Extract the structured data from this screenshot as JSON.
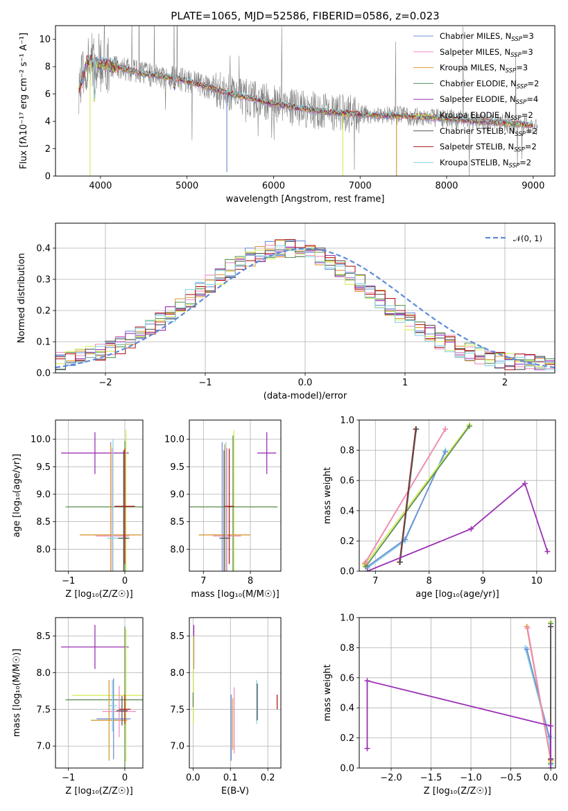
{
  "title": "PLATE=1065, MJD=52586, FIBERID=0586, z=0.023",
  "colors": {
    "Chabrier MILES": "#6f8fd6",
    "Salpeter MILES": "#f08cc0",
    "Kroupa MILES": "#d99a3a",
    "Chabrier ELODIE": "#5a8f5a",
    "Salpeter ELODIE": "#9b30b5",
    "Kroupa ELODIE": "#d6ec5a",
    "Chabrier STELIB": "#555555",
    "Salpeter STELIB": "#b01818",
    "Kroupa STELIB": "#88d4e0",
    "data": "#808080",
    "gauss": "#5b8bd9"
  },
  "chart_data": [
    {
      "id": "spectrum",
      "type": "line",
      "xlabel": "wavelength [Angstrom, rest frame]",
      "ylabel": "Flux [fλ10⁻¹⁷ erg cm⁻² s⁻¹ A⁻¹]",
      "xlim": [
        3480,
        9250
      ],
      "ylim": [
        0,
        11
      ],
      "xticks": [
        4000,
        5000,
        6000,
        7000,
        8000,
        9000
      ],
      "yticks": [
        0,
        2,
        4,
        6,
        8,
        10
      ],
      "legend_position": "top-right",
      "legend": [
        {
          "model": "Chabrier MILES",
          "label": "Chabrier MILES, N",
          "sub": "SSP",
          "tail": "=3"
        },
        {
          "model": "Salpeter MILES",
          "label": "Salpeter MILES, N",
          "sub": "SSP",
          "tail": "=3"
        },
        {
          "model": "Kroupa MILES",
          "label": "Kroupa MILES, N",
          "sub": "SSP",
          "tail": "=3"
        },
        {
          "model": "Chabrier ELODIE",
          "label": "Chabrier ELODIE, N",
          "sub": "SSP",
          "tail": "=2"
        },
        {
          "model": "Salpeter ELODIE",
          "label": "Salpeter ELODIE, N",
          "sub": "SSP",
          "tail": "=4"
        },
        {
          "model": "Kroupa ELODIE",
          "label": "Kroupa ELODIE, N",
          "sub": "SSP",
          "tail": "=2"
        },
        {
          "model": "Chabrier STELIB",
          "label": "Chabrier STELIB, N",
          "sub": "SSP",
          "tail": "=2"
        },
        {
          "model": "Salpeter STELIB",
          "label": "Salpeter STELIB, N",
          "sub": "SSP",
          "tail": "=2"
        },
        {
          "model": "Kroupa STELIB",
          "label": "Kroupa STELIB, N",
          "sub": "SSP",
          "tail": "=2"
        }
      ],
      "continuum": [
        [
          3750,
          6.3
        ],
        [
          3850,
          8.4
        ],
        [
          3950,
          8.3
        ],
        [
          4100,
          8.1
        ],
        [
          4300,
          7.8
        ],
        [
          4500,
          7.5
        ],
        [
          4700,
          7.3
        ],
        [
          4900,
          7.1
        ],
        [
          5200,
          6.6
        ],
        [
          5500,
          6.0
        ],
        [
          5800,
          5.6
        ],
        [
          6000,
          5.3
        ],
        [
          6300,
          4.95
        ],
        [
          6600,
          4.7
        ],
        [
          6900,
          4.55
        ],
        [
          7200,
          4.45
        ],
        [
          7500,
          4.4
        ],
        [
          7800,
          4.3
        ],
        [
          8100,
          4.15
        ],
        [
          8400,
          4.0
        ],
        [
          8700,
          3.85
        ],
        [
          9000,
          3.7
        ]
      ],
      "model_dips": [
        {
          "model": "Kroupa ELODIE",
          "x": 3880,
          "y": 0
        },
        {
          "model": "Chabrier MILES",
          "x": 5460,
          "y": 0.3
        },
        {
          "model": "Kroupa ELODIE",
          "x": 6800,
          "y": 0
        },
        {
          "model": "Kroupa MILES",
          "x": 7420,
          "y": 0
        }
      ]
    },
    {
      "id": "residuals",
      "type": "histogram",
      "xlabel": "(data-model)/error",
      "ylabel": "Normed distribution",
      "xlim": [
        -2.5,
        2.5
      ],
      "ylim": [
        0,
        0.48
      ],
      "xticks": [
        -2,
        -1,
        0,
        1,
        2
      ],
      "yticks": [
        0.0,
        0.1,
        0.2,
        0.3,
        0.4
      ],
      "legend": "𝒩(0, 1)",
      "legend_position": "top-right",
      "bin_width": 0.1,
      "bin_start": -2.5
    },
    {
      "id": "age-vs-Z",
      "type": "errorbar",
      "xlabel": "Z [log₁₀(Z/Z☉)]",
      "ylabel": "age  [log₁₀(age/yr)]",
      "xlim": [
        -1.23,
        0.32
      ],
      "ylim": [
        7.6,
        10.35
      ],
      "xticks": [
        -1,
        0
      ],
      "yticks": [
        8.0,
        8.5,
        9.0,
        9.5,
        10.0
      ],
      "points": [
        {
          "model": "Salpeter ELODIE",
          "x": -0.53,
          "y": 9.75,
          "xerr": 0.6,
          "yerr": 0.38
        },
        {
          "model": "Kroupa ELODIE",
          "x": 0.02,
          "y": 8.77,
          "xerr": 1.05,
          "yerr": 1.4
        },
        {
          "model": "Chabrier ELODIE",
          "x": 0.0,
          "y": 8.77,
          "xerr": 1.05,
          "yerr": 1.2
        },
        {
          "model": "Chabrier MILES",
          "x": -0.25,
          "y": 8.25,
          "xerr": 0.0,
          "yerr": 1.7
        },
        {
          "model": "Kroupa MILES",
          "x": -0.25,
          "y": 8.26,
          "xerr": 0.55,
          "yerr": 1.65
        },
        {
          "model": "Salpeter MILES",
          "x": -0.22,
          "y": 8.24,
          "xerr": 0.3,
          "yerr": 1.6
        },
        {
          "model": "Kroupa STELIB",
          "x": -0.21,
          "y": 8.2,
          "xerr": 0.1,
          "yerr": 1.8
        },
        {
          "model": "Salpeter STELIB",
          "x": 0.0,
          "y": 8.78,
          "xerr": 0.18,
          "yerr": 1.05
        },
        {
          "model": "Chabrier STELIB",
          "x": -0.02,
          "y": 8.2,
          "xerr": 0.1,
          "yerr": 1.6
        }
      ]
    },
    {
      "id": "age-vs-mass",
      "type": "errorbar",
      "xlabel": "mass [log₁₀(M/M☉)]",
      "ylabel": "",
      "xlim": [
        6.7,
        8.65
      ],
      "ylim": [
        7.6,
        10.35
      ],
      "xticks": [
        7,
        8
      ],
      "yticks": [
        8.0,
        8.5,
        9.0,
        9.5,
        10.0
      ],
      "points": [
        {
          "model": "Salpeter ELODIE",
          "x": 8.35,
          "y": 9.75,
          "xerr": 0.2,
          "yerr": 0.38
        },
        {
          "model": "Kroupa ELODIE",
          "x": 7.65,
          "y": 8.77,
          "xerr": 0.9,
          "yerr": 1.4
        },
        {
          "model": "Chabrier ELODIE",
          "x": 7.63,
          "y": 8.77,
          "xerr": 0.95,
          "yerr": 1.3
        },
        {
          "model": "Chabrier MILES",
          "x": 7.4,
          "y": 8.25,
          "xerr": 0.0,
          "yerr": 1.7
        },
        {
          "model": "Kroupa MILES",
          "x": 7.45,
          "y": 8.26,
          "xerr": 0.55,
          "yerr": 1.65
        },
        {
          "model": "Salpeter MILES",
          "x": 7.5,
          "y": 8.24,
          "xerr": 0.3,
          "yerr": 1.6
        },
        {
          "model": "Kroupa STELIB",
          "x": 7.48,
          "y": 8.2,
          "xerr": 0.1,
          "yerr": 1.75
        },
        {
          "model": "Salpeter STELIB",
          "x": 7.55,
          "y": 8.78,
          "xerr": 0.1,
          "yerr": 1.05
        },
        {
          "model": "Chabrier STELIB",
          "x": 7.44,
          "y": 8.2,
          "xerr": 0.1,
          "yerr": 1.6
        }
      ]
    },
    {
      "id": "weight-vs-age",
      "type": "line",
      "xlabel": "age  [log₁₀(age/yr)]",
      "ylabel": "mass weight",
      "xlim": [
        6.7,
        10.35
      ],
      "ylim": [
        0,
        1.0
      ],
      "xticks": [
        7,
        8,
        9,
        10
      ],
      "yticks": [
        0.0,
        0.2,
        0.4,
        0.6,
        0.8,
        1.0
      ],
      "series": [
        {
          "model": "Kroupa STELIB",
          "x": [
            6.85,
            7.55,
            8.3
          ],
          "y": [
            0.02,
            0.2,
            0.8
          ]
        },
        {
          "model": "Chabrier MILES",
          "x": [
            6.85,
            7.55,
            8.3
          ],
          "y": [
            0.03,
            0.21,
            0.79
          ]
        },
        {
          "model": "Kroupa ELODIE",
          "x": [
            6.8,
            8.75
          ],
          "y": [
            0.04,
            0.97
          ]
        },
        {
          "model": "Chabrier ELODIE",
          "x": [
            6.82,
            8.75
          ],
          "y": [
            0.03,
            0.96
          ]
        },
        {
          "model": "Kroupa MILES",
          "x": [
            6.8,
            8.3
          ],
          "y": [
            0.05,
            0.94
          ]
        },
        {
          "model": "Salpeter MILES",
          "x": [
            6.82,
            8.3
          ],
          "y": [
            0.06,
            0.94
          ]
        },
        {
          "model": "Salpeter STELIB",
          "x": [
            7.45,
            7.75
          ],
          "y": [
            0.06,
            0.94
          ]
        },
        {
          "model": "Chabrier STELIB",
          "x": [
            7.46,
            7.76
          ],
          "y": [
            0.06,
            0.94
          ]
        },
        {
          "model": "Salpeter ELODIE",
          "x": [
            6.85,
            8.78,
            9.78,
            10.2
          ],
          "y": [
            0.0,
            0.28,
            0.58,
            0.13
          ]
        }
      ]
    },
    {
      "id": "mass-vs-Z",
      "type": "errorbar",
      "xlabel": "Z [log₁₀(Z/Z☉)]",
      "ylabel": "mass [log₁₀(M/M☉)]",
      "xlim": [
        -1.23,
        0.32
      ],
      "ylim": [
        6.7,
        8.75
      ],
      "xticks": [
        -1,
        0
      ],
      "yticks": [
        7.0,
        7.5,
        8.0,
        8.5
      ],
      "points": [
        {
          "model": "Salpeter ELODIE",
          "x": -0.53,
          "y": 8.35,
          "xerr": 0.6,
          "yerr": 0.3
        },
        {
          "model": "Kroupa ELODIE",
          "x": 0.02,
          "y": 7.69,
          "xerr": 0.95,
          "yerr": 0.9
        },
        {
          "model": "Chabrier ELODIE",
          "x": 0.0,
          "y": 7.63,
          "xerr": 1.05,
          "yerr": 1.0
        },
        {
          "model": "Chabrier MILES",
          "x": -0.2,
          "y": 7.37,
          "xerr": 0.3,
          "yerr": 0.55
        },
        {
          "model": "Kroupa MILES",
          "x": -0.28,
          "y": 7.35,
          "xerr": 0.32,
          "yerr": 0.55
        },
        {
          "model": "Salpeter MILES",
          "x": -0.1,
          "y": 7.47,
          "xerr": 0.3,
          "yerr": 0.35
        },
        {
          "model": "Kroupa STELIB",
          "x": -0.22,
          "y": 7.55,
          "xerr": 0.08,
          "yerr": 0.35
        },
        {
          "model": "Salpeter STELIB",
          "x": 0.0,
          "y": 7.5,
          "xerr": 0.1,
          "yerr": 0.2
        },
        {
          "model": "Chabrier STELIB",
          "x": -0.05,
          "y": 7.48,
          "xerr": 0.1,
          "yerr": 0.2
        }
      ]
    },
    {
      "id": "mass-vs-EBV",
      "type": "errorbar",
      "xlabel": "E(B-V)",
      "ylabel": "",
      "xlim": [
        -0.01,
        0.235
      ],
      "ylim": [
        6.7,
        8.75
      ],
      "xticks": [
        0.0,
        0.1,
        0.2
      ],
      "yticks": [
        7.0,
        7.5,
        8.0,
        8.5
      ],
      "points": [
        {
          "model": "Salpeter ELODIE",
          "x": 0.002,
          "y": 8.35,
          "xerr": 0,
          "yerr": 0.3
        },
        {
          "model": "Kroupa ELODIE",
          "x": 0.001,
          "y": 7.9,
          "xerr": 0,
          "yerr": 0.6
        },
        {
          "model": "Chabrier ELODIE",
          "x": 0.0,
          "y": 7.63,
          "xerr": 0,
          "yerr": 0.1
        },
        {
          "model": "Chabrier MILES",
          "x": 0.102,
          "y": 7.25,
          "xerr": 0,
          "yerr": 0.45
        },
        {
          "model": "Kroupa MILES",
          "x": 0.106,
          "y": 7.3,
          "xerr": 0,
          "yerr": 0.35
        },
        {
          "model": "Salpeter MILES",
          "x": 0.11,
          "y": 7.35,
          "xerr": 0,
          "yerr": 0.45
        },
        {
          "model": "Kroupa STELIB",
          "x": 0.17,
          "y": 7.6,
          "xerr": 0,
          "yerr": 0.3
        },
        {
          "model": "Chabrier STELIB",
          "x": 0.172,
          "y": 7.6,
          "xerr": 0,
          "yerr": 0.25
        },
        {
          "model": "Salpeter STELIB",
          "x": 0.225,
          "y": 7.6,
          "xerr": 0,
          "yerr": 0.1
        }
      ]
    },
    {
      "id": "weight-vs-Z",
      "type": "line",
      "xlabel": "Z [log₁₀(Z/Z☉)]",
      "ylabel": "mass weight",
      "xlim": [
        -2.4,
        0.06
      ],
      "ylim": [
        0,
        1.0
      ],
      "xticks": [
        -2.0,
        -1.5,
        -1.0,
        -0.5,
        0.0
      ],
      "yticks": [
        0.0,
        0.2,
        0.4,
        0.6,
        0.8,
        1.0
      ],
      "series": [
        {
          "model": "Kroupa STELIB",
          "x": [
            -0.32,
            -0.02,
            0.0
          ],
          "y": [
            0.8,
            0.2,
            0.02
          ]
        },
        {
          "model": "Chabrier MILES",
          "x": [
            -0.3,
            -0.02
          ],
          "y": [
            0.79,
            0.21
          ]
        },
        {
          "model": "Kroupa MILES",
          "x": [
            -0.3,
            0.0
          ],
          "y": [
            0.94,
            0.05
          ]
        },
        {
          "model": "Salpeter MILES",
          "x": [
            -0.29,
            0.0
          ],
          "y": [
            0.93,
            0.06
          ]
        },
        {
          "model": "Kroupa ELODIE",
          "x": [
            0.0,
            0.0
          ],
          "y": [
            0.04,
            0.97
          ]
        },
        {
          "model": "Chabrier ELODIE",
          "x": [
            0.0,
            0.0
          ],
          "y": [
            0.03,
            0.96
          ]
        },
        {
          "model": "Salpeter STELIB",
          "x": [
            0.0,
            0.0
          ],
          "y": [
            0.06,
            0.94
          ]
        },
        {
          "model": "Chabrier STELIB",
          "x": [
            0.0,
            0.0
          ],
          "y": [
            0.06,
            0.94
          ]
        },
        {
          "model": "Salpeter ELODIE",
          "x": [
            -2.3,
            -2.3,
            0.0,
            0.0
          ],
          "y": [
            0.13,
            0.58,
            0.28,
            0.0
          ]
        }
      ]
    }
  ]
}
